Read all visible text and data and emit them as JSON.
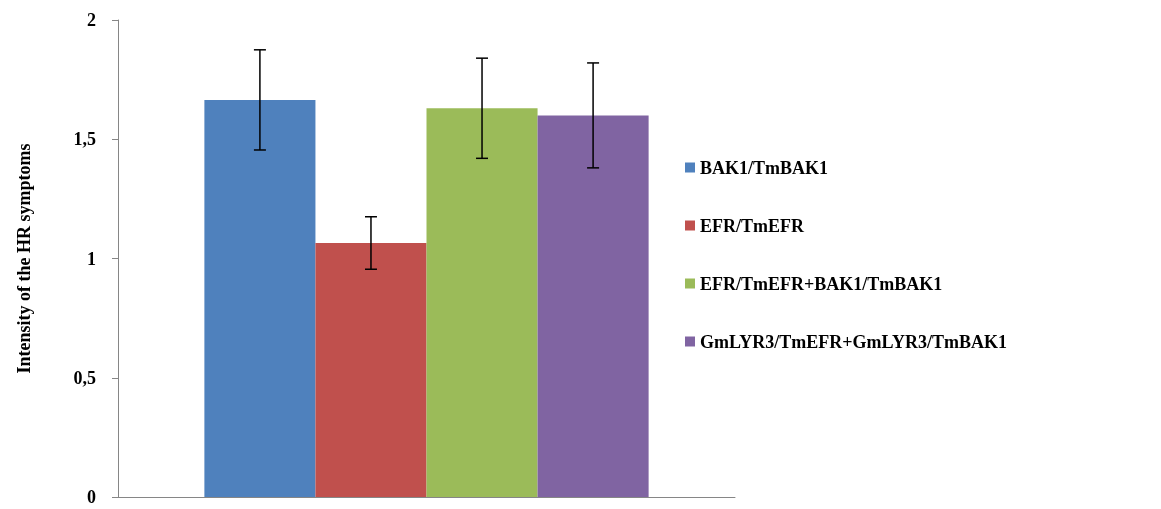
{
  "chart_data": {
    "type": "bar",
    "ylabel": "Intensity of the HR symptoms",
    "categories": [
      null
    ],
    "series": [
      {
        "name": "BAK1/TmBAK1",
        "color": "#4f81bd",
        "values": [
          1.665
        ],
        "errors": [
          0.21
        ]
      },
      {
        "name": "EFR/TmEFR",
        "color": "#c0504d",
        "values": [
          1.065
        ],
        "errors": [
          0.11
        ]
      },
      {
        "name": "EFR/TmEFR+BAK1/TmBAK1",
        "color": "#9bbb59",
        "values": [
          1.63
        ],
        "errors": [
          0.21
        ]
      },
      {
        "name": "GmLYR3/TmEFR+GmLYR3/TmBAK1",
        "color": "#8064a2",
        "values": [
          1.6
        ],
        "errors": [
          0.22
        ]
      }
    ],
    "ylim": [
      0,
      2
    ],
    "yticks": [
      0,
      {
        "value": 0.5,
        "label": "0,5"
      },
      1,
      {
        "value": 1.5,
        "label": "1,5"
      },
      2
    ],
    "grid": false,
    "legend": "right"
  }
}
